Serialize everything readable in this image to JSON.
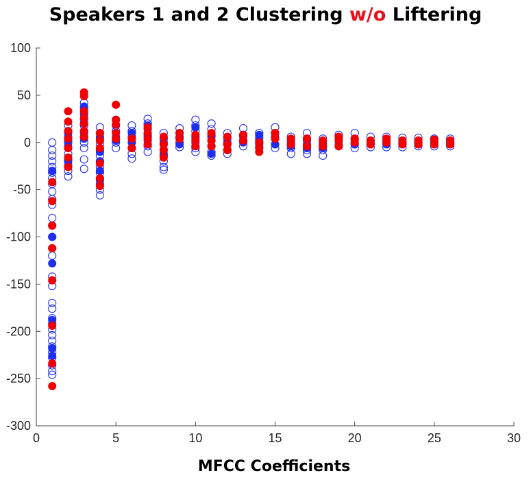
{
  "title": {
    "prefix": "Speakers 1 and 2 Clustering ",
    "highlight": "w/o",
    "suffix": " Liftering"
  },
  "colors": {
    "highlight": "#e8101a",
    "series1": "#1f2ff0",
    "series2": "#f00000",
    "axis": "#404040"
  },
  "chart_data": {
    "type": "scatter",
    "title": "Speakers 1 and 2 Clustering w/o Liftering",
    "xlabel": "MFCC Coefficients",
    "ylabel": "",
    "xlim": [
      0,
      30
    ],
    "ylim": [
      -300,
      100
    ],
    "xticks": [
      0,
      5,
      10,
      15,
      20,
      25,
      30
    ],
    "yticks": [
      100,
      50,
      0,
      -50,
      -100,
      -150,
      -200,
      -250,
      -300
    ],
    "grid": false,
    "legend": "none",
    "series": [
      {
        "marker": "open-circle",
        "color": "#1f2ff0",
        "points": [
          [
            1,
            0
          ],
          [
            1,
            -8
          ],
          [
            1,
            -14
          ],
          [
            1,
            -20
          ],
          [
            1,
            -26
          ],
          [
            1,
            -32
          ],
          [
            1,
            -38
          ],
          [
            1,
            -44
          ],
          [
            1,
            -52
          ],
          [
            1,
            -60
          ],
          [
            1,
            -66
          ],
          [
            1,
            -80
          ],
          [
            1,
            -88
          ],
          [
            1,
            -100
          ],
          [
            1,
            -112
          ],
          [
            1,
            -120
          ],
          [
            1,
            -142
          ],
          [
            1,
            -152
          ],
          [
            1,
            -170
          ],
          [
            1,
            -176
          ],
          [
            1,
            -186
          ],
          [
            1,
            -192
          ],
          [
            1,
            -198
          ],
          [
            1,
            -204
          ],
          [
            1,
            -210
          ],
          [
            1,
            -216
          ],
          [
            1,
            -222
          ],
          [
            1,
            -228
          ],
          [
            1,
            -236
          ],
          [
            1,
            -242
          ],
          [
            1,
            -246
          ],
          [
            2,
            18
          ],
          [
            2,
            12
          ],
          [
            2,
            6
          ],
          [
            2,
            0
          ],
          [
            2,
            -6
          ],
          [
            2,
            -12
          ],
          [
            2,
            -18
          ],
          [
            2,
            -24
          ],
          [
            2,
            -30
          ],
          [
            2,
            -36
          ],
          [
            3,
            42
          ],
          [
            3,
            36
          ],
          [
            3,
            30
          ],
          [
            3,
            24
          ],
          [
            3,
            18
          ],
          [
            3,
            12
          ],
          [
            3,
            6
          ],
          [
            3,
            0
          ],
          [
            3,
            -6
          ],
          [
            3,
            -18
          ],
          [
            3,
            -28
          ],
          [
            4,
            16
          ],
          [
            4,
            10
          ],
          [
            4,
            4
          ],
          [
            4,
            -2
          ],
          [
            4,
            -8
          ],
          [
            4,
            -14
          ],
          [
            4,
            -20
          ],
          [
            4,
            -26
          ],
          [
            4,
            -32
          ],
          [
            4,
            -38
          ],
          [
            4,
            -44
          ],
          [
            4,
            -50
          ],
          [
            4,
            -56
          ],
          [
            5,
            24
          ],
          [
            5,
            18
          ],
          [
            5,
            12
          ],
          [
            5,
            6
          ],
          [
            5,
            0
          ],
          [
            5,
            -6
          ],
          [
            6,
            18
          ],
          [
            6,
            12
          ],
          [
            6,
            6
          ],
          [
            6,
            0
          ],
          [
            6,
            -6
          ],
          [
            6,
            -12
          ],
          [
            6,
            -17
          ],
          [
            7,
            25
          ],
          [
            7,
            20
          ],
          [
            7,
            14
          ],
          [
            7,
            8
          ],
          [
            7,
            2
          ],
          [
            7,
            -4
          ],
          [
            7,
            -10
          ],
          [
            8,
            10
          ],
          [
            8,
            4
          ],
          [
            8,
            -2
          ],
          [
            8,
            -8
          ],
          [
            8,
            -14
          ],
          [
            8,
            -20
          ],
          [
            8,
            -26
          ],
          [
            8,
            -29
          ],
          [
            9,
            15
          ],
          [
            9,
            10
          ],
          [
            9,
            5
          ],
          [
            9,
            0
          ],
          [
            9,
            -5
          ],
          [
            10,
            24
          ],
          [
            10,
            18
          ],
          [
            10,
            12
          ],
          [
            10,
            6
          ],
          [
            10,
            0
          ],
          [
            10,
            -6
          ],
          [
            10,
            -10
          ],
          [
            11,
            20
          ],
          [
            11,
            14
          ],
          [
            11,
            8
          ],
          [
            11,
            2
          ],
          [
            11,
            -4
          ],
          [
            11,
            -10
          ],
          [
            11,
            -14
          ],
          [
            12,
            10
          ],
          [
            12,
            4
          ],
          [
            12,
            -2
          ],
          [
            12,
            -8
          ],
          [
            12,
            -12
          ],
          [
            13,
            15
          ],
          [
            13,
            8
          ],
          [
            13,
            2
          ],
          [
            13,
            -4
          ],
          [
            14,
            10
          ],
          [
            14,
            5
          ],
          [
            14,
            0
          ],
          [
            14,
            -5
          ],
          [
            15,
            16
          ],
          [
            15,
            10
          ],
          [
            15,
            4
          ],
          [
            15,
            -2
          ],
          [
            15,
            -6
          ],
          [
            16,
            6
          ],
          [
            16,
            0
          ],
          [
            16,
            -6
          ],
          [
            16,
            -12
          ],
          [
            17,
            10
          ],
          [
            17,
            4
          ],
          [
            17,
            -2
          ],
          [
            17,
            -8
          ],
          [
            17,
            -12
          ],
          [
            18,
            4
          ],
          [
            18,
            -2
          ],
          [
            18,
            -8
          ],
          [
            18,
            -14
          ],
          [
            19,
            8
          ],
          [
            19,
            2
          ],
          [
            19,
            -4
          ],
          [
            20,
            10
          ],
          [
            20,
            4
          ],
          [
            20,
            -2
          ],
          [
            20,
            -6
          ],
          [
            21,
            6
          ],
          [
            21,
            0
          ],
          [
            21,
            -5
          ],
          [
            22,
            6
          ],
          [
            22,
            0
          ],
          [
            22,
            -5
          ],
          [
            23,
            5
          ],
          [
            23,
            0
          ],
          [
            23,
            -5
          ],
          [
            24,
            5
          ],
          [
            24,
            0
          ],
          [
            24,
            -4
          ],
          [
            25,
            4
          ],
          [
            25,
            0
          ],
          [
            25,
            -4
          ],
          [
            26,
            4
          ],
          [
            26,
            0
          ],
          [
            26,
            -4
          ]
        ]
      },
      {
        "marker": "filled-circle",
        "color": "#1f2ff0",
        "points": [
          [
            1,
            -30
          ],
          [
            1,
            -100
          ],
          [
            1,
            -128
          ],
          [
            1,
            -188
          ],
          [
            1,
            -218
          ],
          [
            1,
            -226
          ],
          [
            2,
            10
          ],
          [
            2,
            2
          ],
          [
            2,
            -4
          ],
          [
            2,
            -20
          ],
          [
            3,
            38
          ],
          [
            3,
            30
          ],
          [
            3,
            20
          ],
          [
            3,
            10
          ],
          [
            3,
            4
          ],
          [
            4,
            6
          ],
          [
            4,
            -10
          ],
          [
            4,
            -20
          ],
          [
            4,
            -30
          ],
          [
            4,
            -40
          ],
          [
            5,
            2
          ],
          [
            6,
            10
          ],
          [
            6,
            0
          ],
          [
            6,
            -6
          ],
          [
            7,
            18
          ],
          [
            7,
            6
          ],
          [
            7,
            -2
          ],
          [
            8,
            0
          ],
          [
            8,
            -12
          ],
          [
            9,
            6
          ],
          [
            9,
            -2
          ],
          [
            10,
            16
          ],
          [
            10,
            4
          ],
          [
            10,
            -4
          ],
          [
            11,
            6
          ],
          [
            11,
            -4
          ],
          [
            11,
            -12
          ],
          [
            12,
            0
          ],
          [
            12,
            -8
          ],
          [
            13,
            6
          ],
          [
            13,
            0
          ],
          [
            14,
            8
          ],
          [
            14,
            2
          ],
          [
            14,
            -2
          ],
          [
            15,
            6
          ],
          [
            15,
            -2
          ],
          [
            16,
            2
          ],
          [
            16,
            -4
          ],
          [
            17,
            2
          ],
          [
            17,
            -6
          ],
          [
            18,
            0
          ],
          [
            18,
            -6
          ],
          [
            19,
            4
          ],
          [
            19,
            -2
          ],
          [
            20,
            2
          ],
          [
            20,
            -2
          ],
          [
            21,
            2
          ],
          [
            21,
            -2
          ],
          [
            22,
            2
          ],
          [
            22,
            -2
          ],
          [
            23,
            2
          ],
          [
            23,
            -2
          ],
          [
            24,
            2
          ],
          [
            24,
            -2
          ],
          [
            25,
            0
          ],
          [
            26,
            2
          ],
          [
            26,
            -2
          ]
        ]
      },
      {
        "marker": "filled-circle",
        "color": "#f00000",
        "points": [
          [
            1,
            -42
          ],
          [
            1,
            -62
          ],
          [
            1,
            -88
          ],
          [
            1,
            -112
          ],
          [
            1,
            -146
          ],
          [
            1,
            -194
          ],
          [
            1,
            -234
          ],
          [
            1,
            -258
          ],
          [
            2,
            33
          ],
          [
            2,
            22
          ],
          [
            2,
            12
          ],
          [
            2,
            4
          ],
          [
            2,
            -6
          ],
          [
            2,
            -16
          ],
          [
            2,
            -26
          ],
          [
            3,
            53
          ],
          [
            3,
            49
          ],
          [
            3,
            33
          ],
          [
            3,
            26
          ],
          [
            3,
            20
          ],
          [
            3,
            12
          ],
          [
            3,
            6
          ],
          [
            4,
            10
          ],
          [
            4,
            2
          ],
          [
            4,
            -6
          ],
          [
            4,
            -22
          ],
          [
            4,
            -38
          ],
          [
            4,
            -46
          ],
          [
            5,
            40
          ],
          [
            5,
            24
          ],
          [
            5,
            19
          ],
          [
            5,
            10
          ],
          [
            5,
            4
          ],
          [
            6,
            4
          ],
          [
            6,
            -6
          ],
          [
            7,
            16
          ],
          [
            7,
            10
          ],
          [
            7,
            4
          ],
          [
            7,
            -2
          ],
          [
            8,
            6
          ],
          [
            8,
            -2
          ],
          [
            8,
            -8
          ],
          [
            8,
            -16
          ],
          [
            9,
            10
          ],
          [
            9,
            4
          ],
          [
            10,
            8
          ],
          [
            10,
            2
          ],
          [
            10,
            -4
          ],
          [
            11,
            10
          ],
          [
            11,
            2
          ],
          [
            11,
            -4
          ],
          [
            12,
            6
          ],
          [
            12,
            -2
          ],
          [
            12,
            -8
          ],
          [
            13,
            8
          ],
          [
            13,
            2
          ],
          [
            14,
            0
          ],
          [
            14,
            -6
          ],
          [
            14,
            -10
          ],
          [
            15,
            10
          ],
          [
            15,
            4
          ],
          [
            16,
            4
          ],
          [
            16,
            -2
          ],
          [
            17,
            4
          ],
          [
            17,
            -4
          ],
          [
            18,
            2
          ],
          [
            18,
            -4
          ],
          [
            19,
            6
          ],
          [
            19,
            2
          ],
          [
            19,
            -4
          ],
          [
            20,
            4
          ],
          [
            20,
            0
          ],
          [
            21,
            2
          ],
          [
            21,
            -2
          ],
          [
            22,
            4
          ],
          [
            22,
            0
          ],
          [
            23,
            2
          ],
          [
            23,
            -2
          ],
          [
            24,
            2
          ],
          [
            24,
            -2
          ],
          [
            25,
            3
          ],
          [
            25,
            -2
          ],
          [
            26,
            2
          ],
          [
            26,
            -2
          ]
        ]
      }
    ]
  }
}
